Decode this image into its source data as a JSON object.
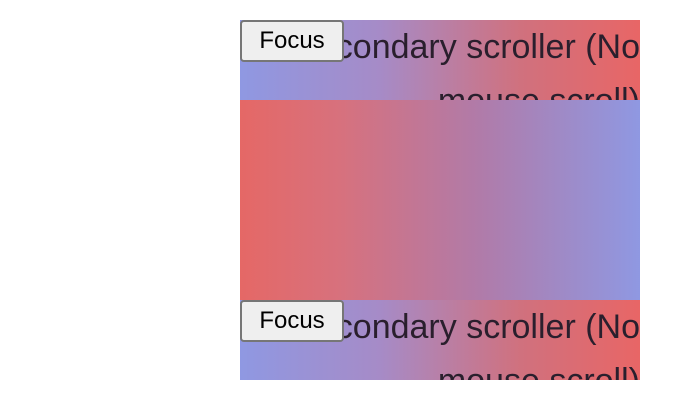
{
  "scrollers": [
    {
      "label": "Secondary scroller (No mouse scroll)",
      "button_label": "Focus"
    },
    {
      "label": "Secondary scroller (No mouse scroll)",
      "button_label": "Focus"
    }
  ],
  "colors": {
    "gradient_blue": "#8F98E2",
    "gradient_purple": "#A68BC7",
    "gradient_pink": "#D0717E",
    "gradient_red": "#E86666",
    "text": "#2a1f2d",
    "button_bg": "#EFEFEF",
    "button_border": "#767676"
  }
}
